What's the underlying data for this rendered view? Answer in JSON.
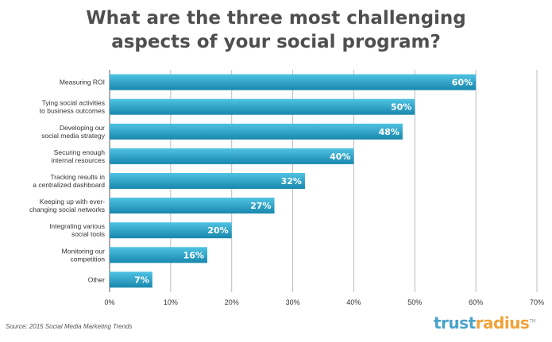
{
  "title_line1": "What are the three most challenging",
  "title_line2": "aspects of your social program?",
  "source": "Source: 2015 Social Media Marketing Trends",
  "logo": {
    "part1": "trust",
    "part2": "radius",
    "mark": "TM"
  },
  "colors": {
    "bar_top": "#4fc3e3",
    "bar_bottom": "#1887ac",
    "title": "#4f4f4f",
    "logo_blue": "#4aa3c9",
    "logo_orange": "#f1a33a"
  },
  "chart_data": {
    "type": "bar",
    "orientation": "horizontal",
    "categories": [
      [
        "Measuring ROI"
      ],
      [
        "Tying social activities",
        "to business outcomes"
      ],
      [
        "Developing our",
        "social media strategy"
      ],
      [
        "Securing enough",
        "internal resources"
      ],
      [
        "Tracking results in",
        "a centralized dashboard"
      ],
      [
        "Keeping up with ever-",
        "changing social networks"
      ],
      [
        "Integrating various",
        "social tools"
      ],
      [
        "Monitoring our",
        "competition"
      ],
      [
        "Other"
      ]
    ],
    "values": [
      60,
      50,
      48,
      40,
      32,
      27,
      20,
      16,
      7
    ],
    "value_labels": [
      "60%",
      "50%",
      "48%",
      "40%",
      "32%",
      "27%",
      "20%",
      "16%",
      "7%"
    ],
    "xlim": [
      0,
      70
    ],
    "xticks": [
      0,
      10,
      20,
      30,
      40,
      50,
      60,
      70
    ],
    "xtick_labels": [
      "0%",
      "10%",
      "20%",
      "30%",
      "40%",
      "50%",
      "60%",
      "70%"
    ],
    "grid": true,
    "legend": "none"
  }
}
